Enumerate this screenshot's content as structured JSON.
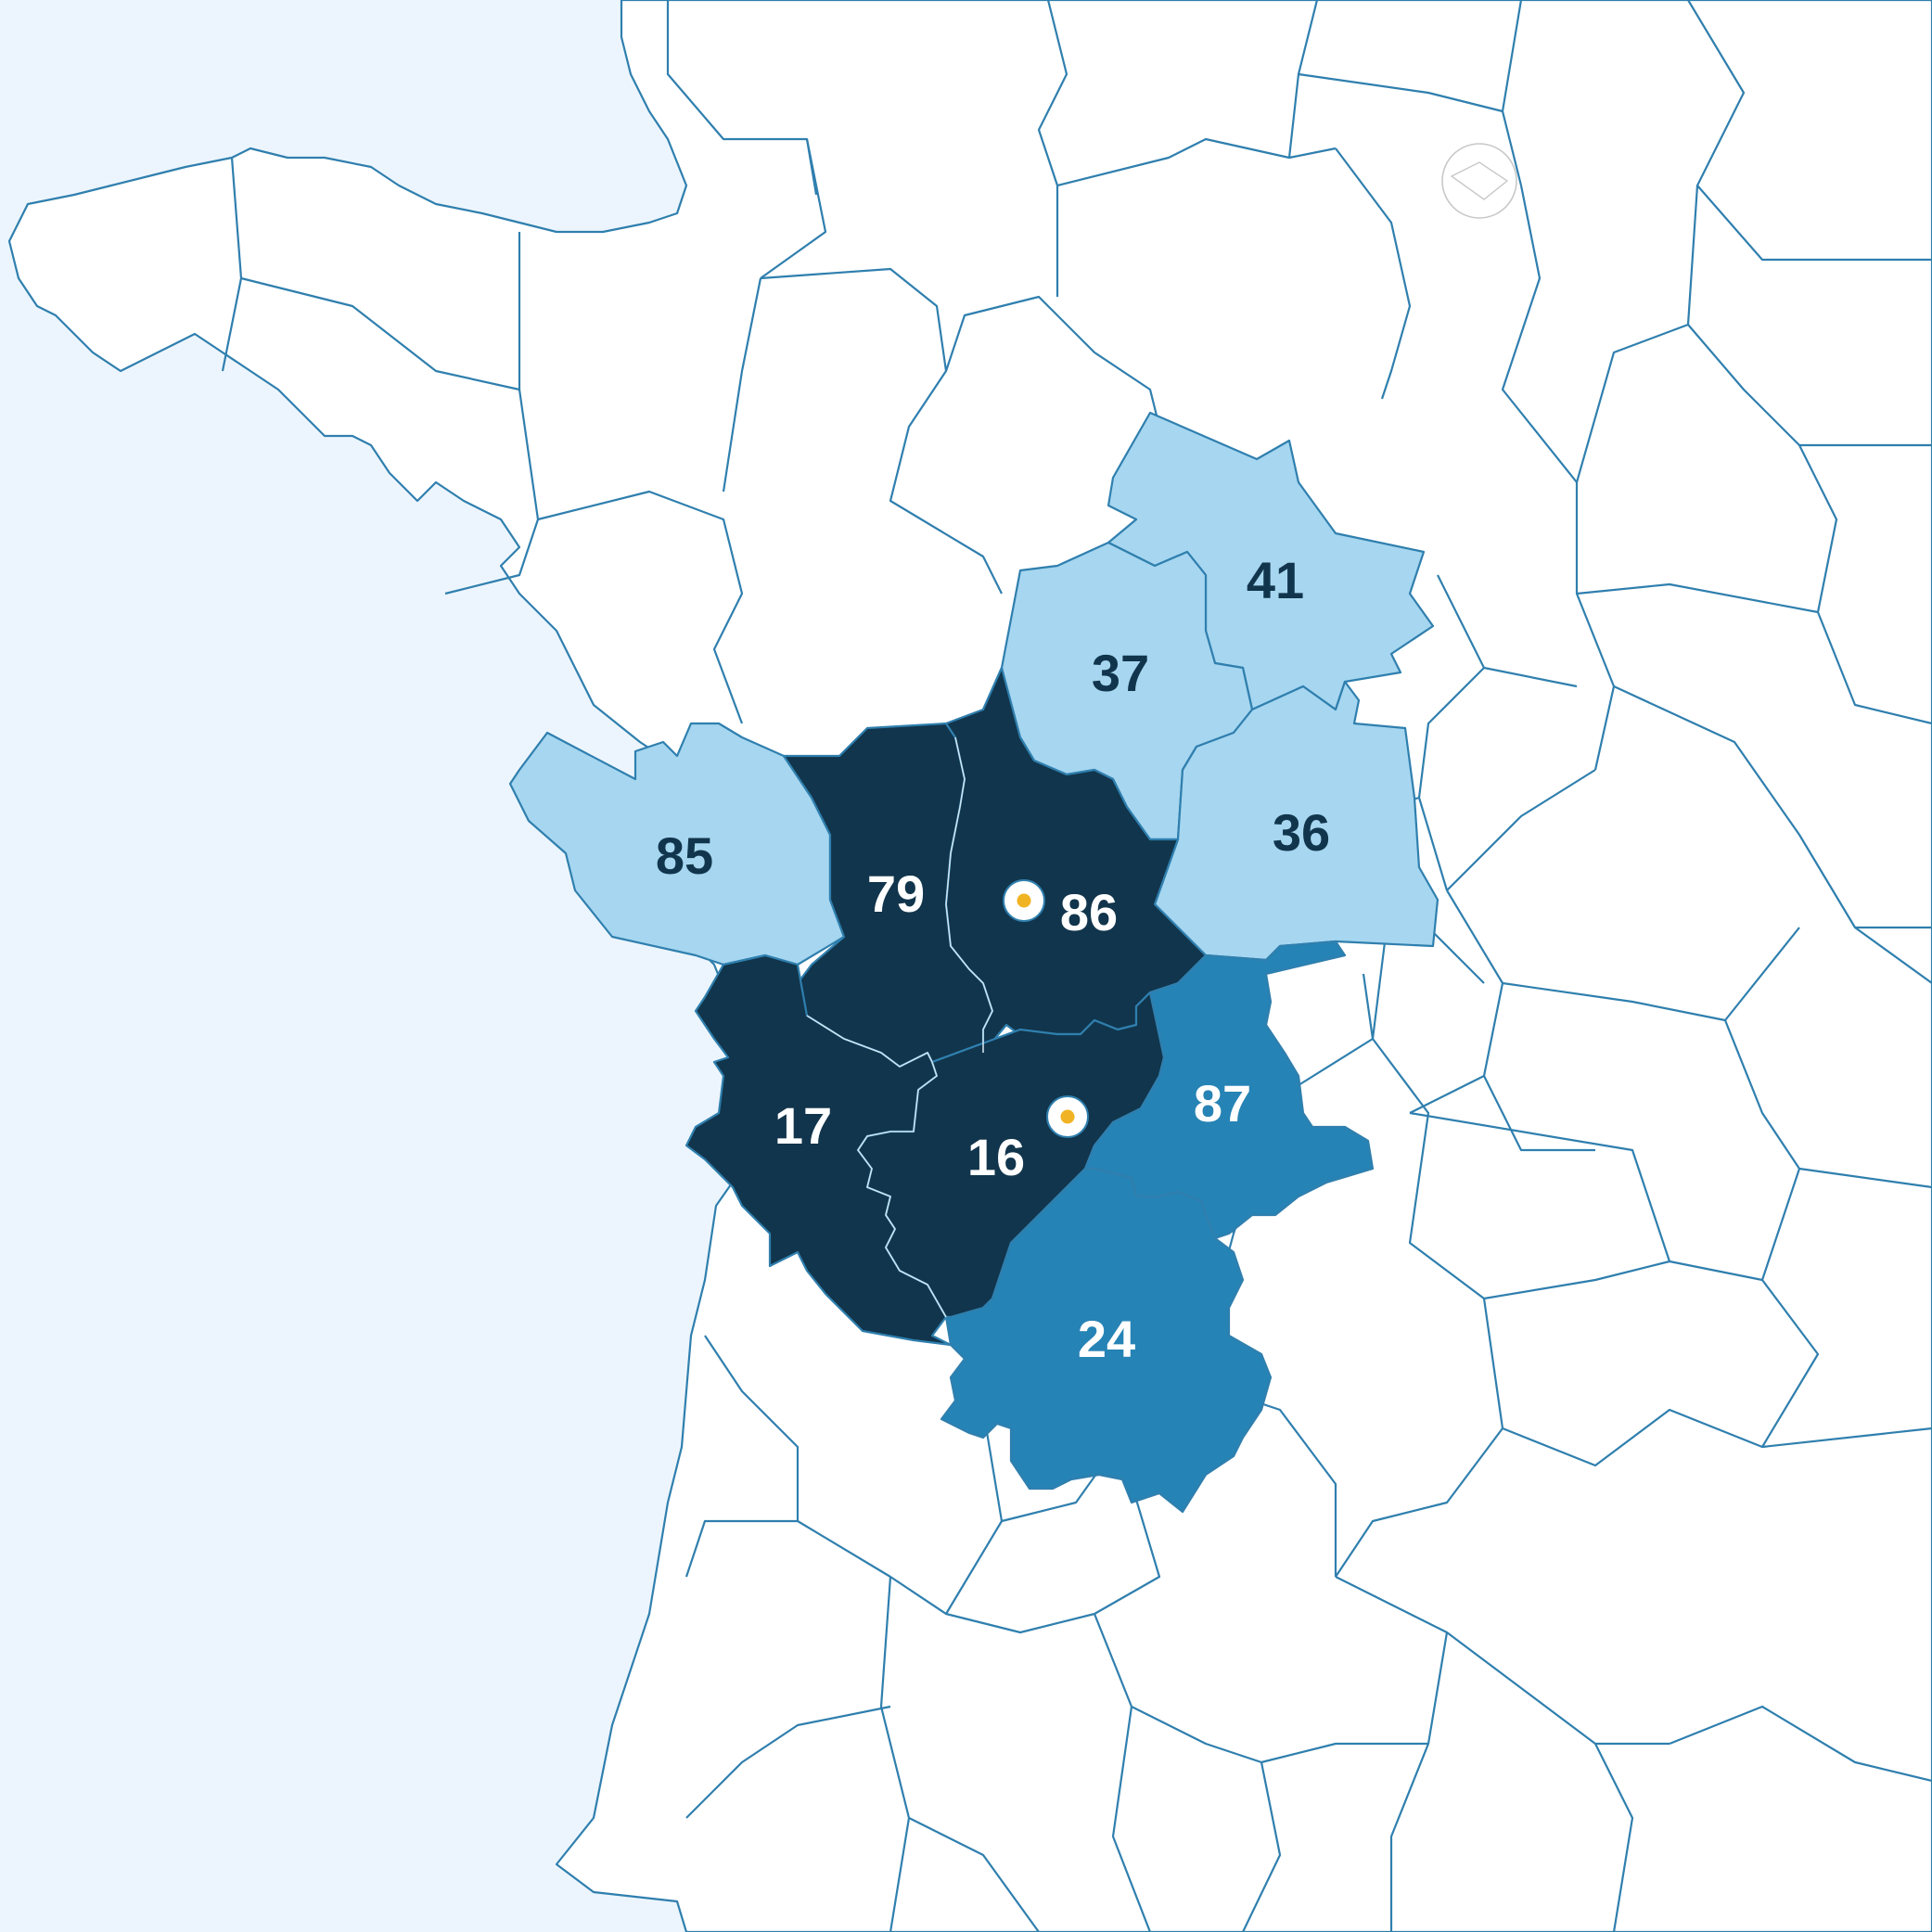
{
  "colors": {
    "sea": "#ecf5fd",
    "land": "#ffffff",
    "border": "#2f7fae",
    "paris_border": "#c8c8c8",
    "tier_light": "#a6d6f0",
    "tier_mid": "#2683b5",
    "tier_dark": "#11354c",
    "marker_ring": "#ffffff",
    "marker_dot": "#f0b323"
  },
  "departments": [
    {
      "code": "41",
      "tier": "light",
      "label_color": "#11354c"
    },
    {
      "code": "37",
      "tier": "light",
      "label_color": "#11354c"
    },
    {
      "code": "36",
      "tier": "light",
      "label_color": "#11354c"
    },
    {
      "code": "85",
      "tier": "light",
      "label_color": "#11354c"
    },
    {
      "code": "79",
      "tier": "dark",
      "label_color": "#ffffff"
    },
    {
      "code": "86",
      "tier": "dark",
      "label_color": "#ffffff"
    },
    {
      "code": "17",
      "tier": "dark",
      "label_color": "#ffffff"
    },
    {
      "code": "16",
      "tier": "dark",
      "label_color": "#ffffff"
    },
    {
      "code": "87",
      "tier": "mid",
      "label_color": "#ffffff"
    },
    {
      "code": "24",
      "tier": "mid",
      "label_color": "#ffffff"
    }
  ],
  "markers": [
    {
      "department": "86",
      "icon": "location-marker-icon"
    },
    {
      "department": "16",
      "icon": "location-marker-icon"
    }
  ]
}
